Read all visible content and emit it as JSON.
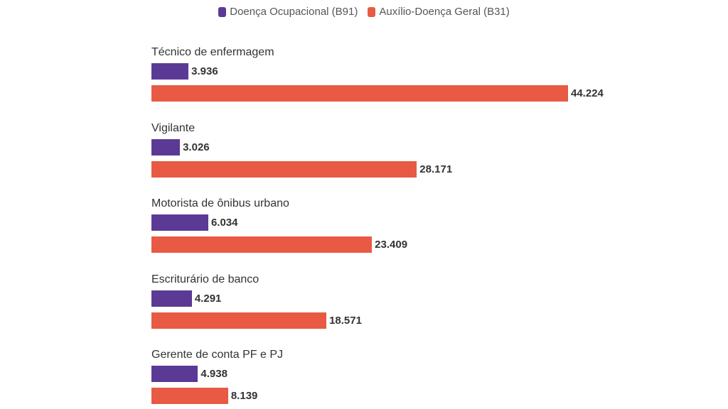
{
  "chart_data": {
    "type": "bar",
    "orientation": "horizontal",
    "categories": [
      "Técnico de enfermagem",
      "Vigilante",
      "Motorista de ônibus urbano",
      "Escriturário de banco",
      "Gerente de conta PF e PJ"
    ],
    "series": [
      {
        "name": "Doença Ocupacional (B91)",
        "color": "#5b3a96",
        "values": [
          3936,
          3026,
          6034,
          4291,
          4938
        ],
        "labels": [
          "3.936",
          "3.026",
          "6.034",
          "4.291",
          "4.938"
        ]
      },
      {
        "name": "Auxílio-Doença Geral (B31)",
        "color": "#e85a44",
        "values": [
          44224,
          28171,
          23409,
          18571,
          8139
        ],
        "labels": [
          "44.224",
          "28.171",
          "23.409",
          "18.571",
          "8.139"
        ]
      }
    ],
    "legend_position": "top-center",
    "grid": false
  }
}
